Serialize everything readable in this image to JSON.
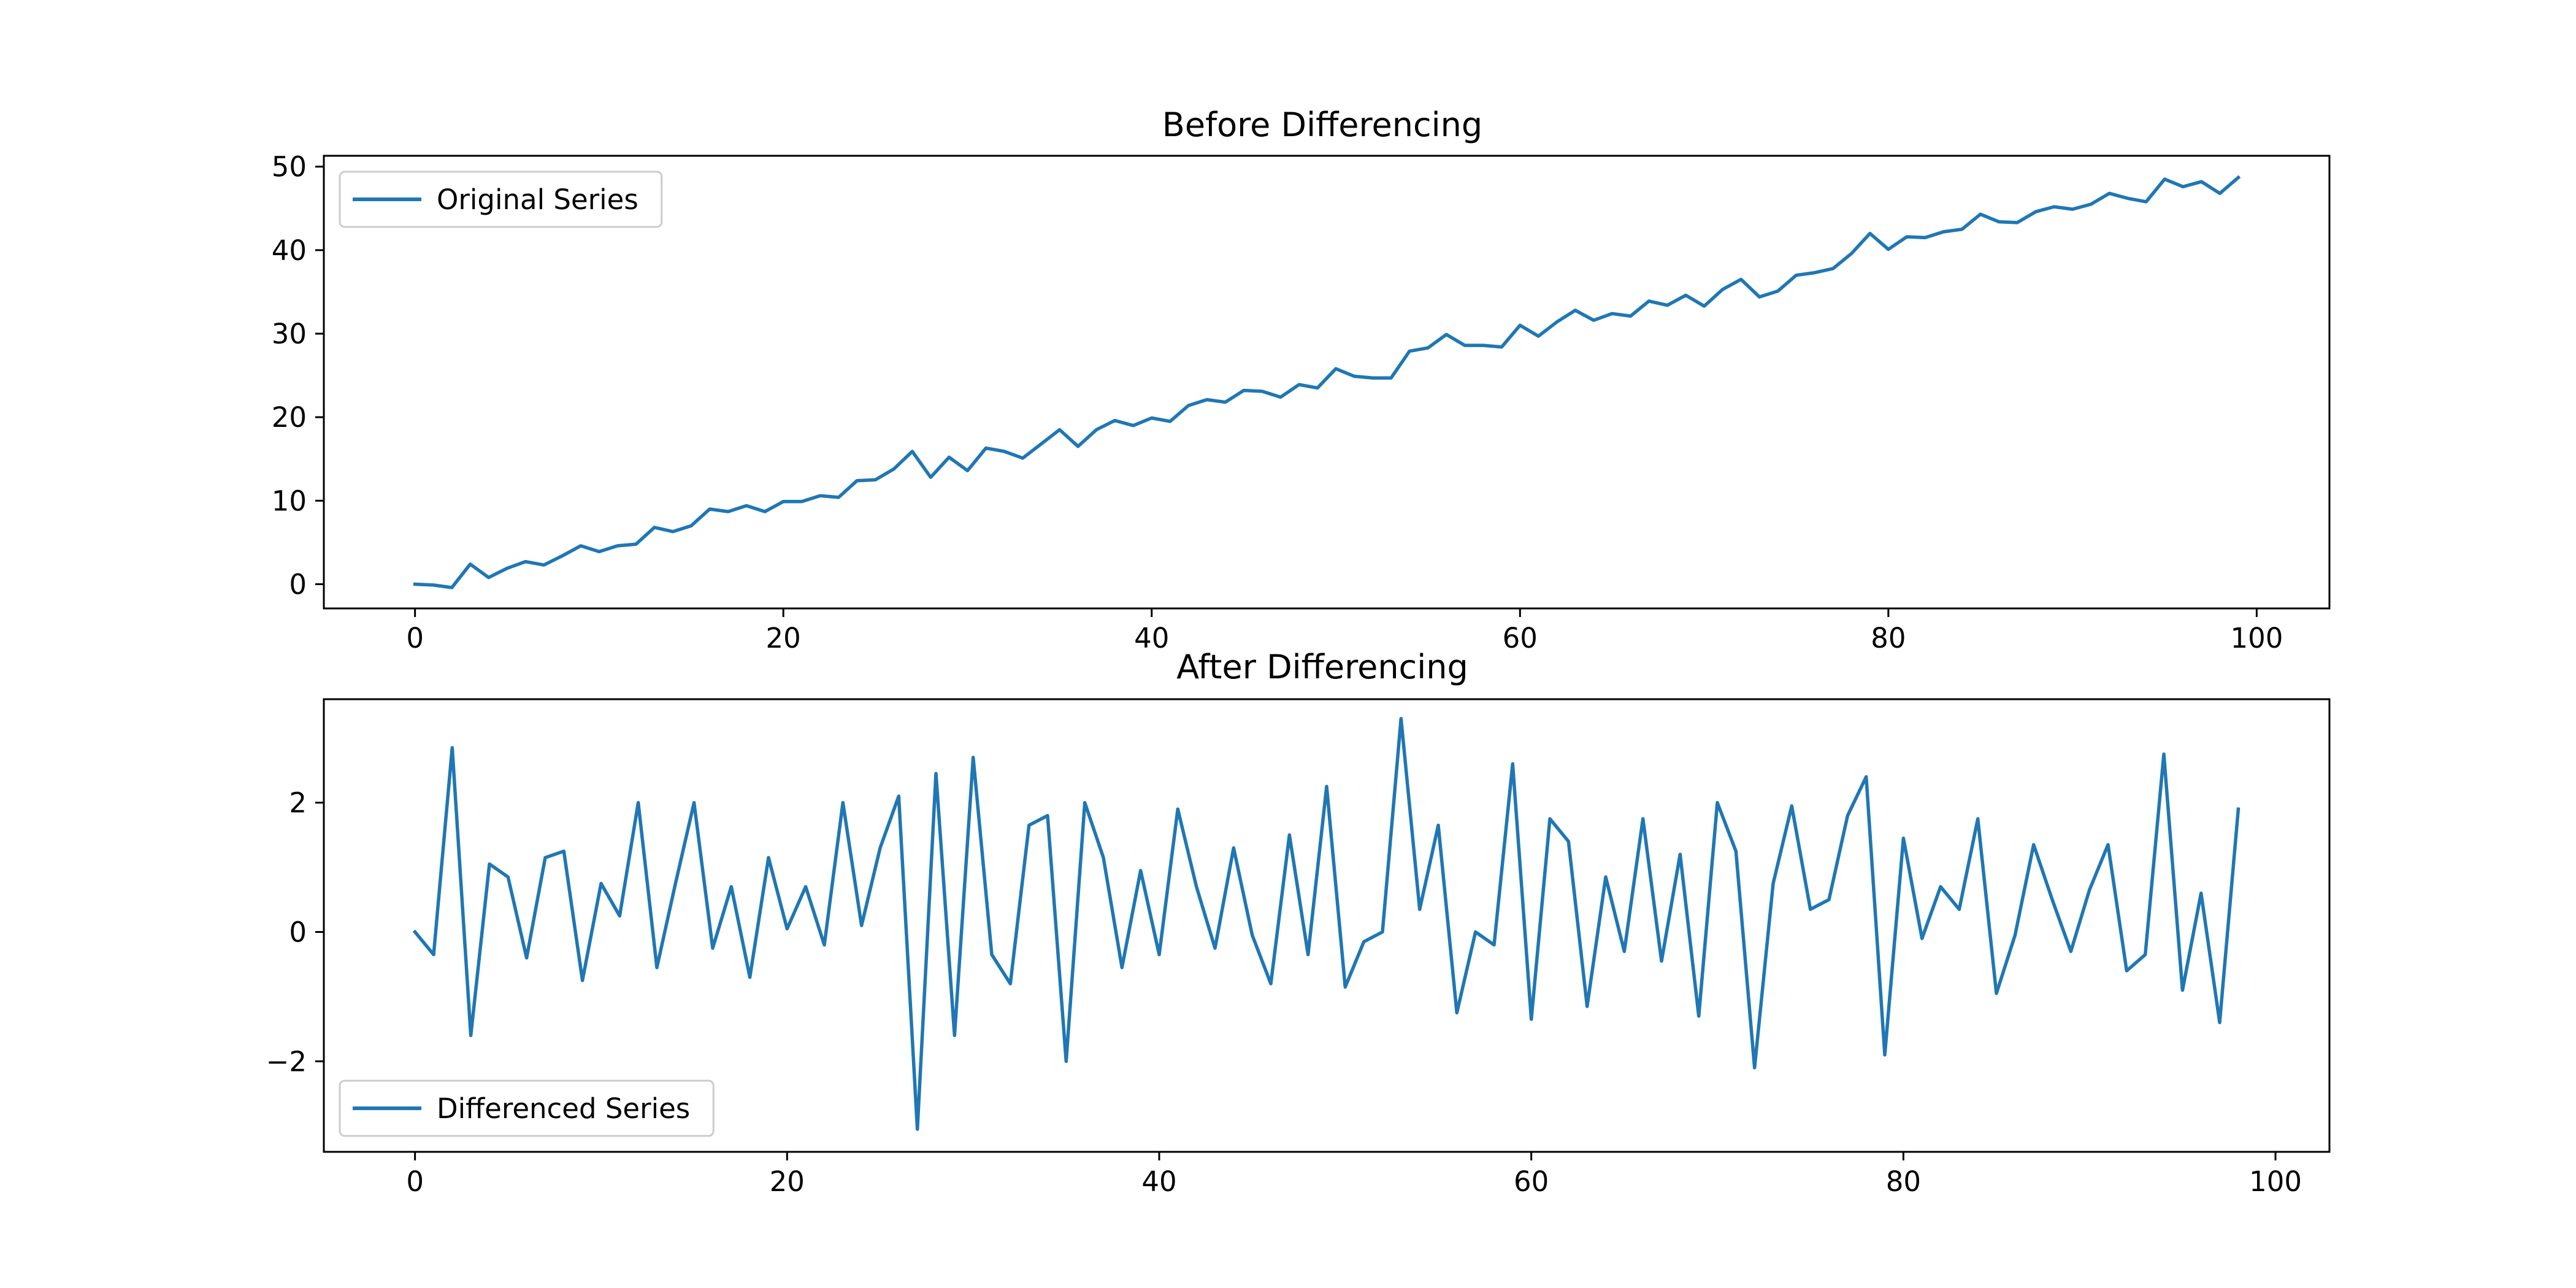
{
  "chart_data": [
    {
      "type": "line",
      "title": "Before Differencing",
      "xlabel": "",
      "ylabel": "",
      "xlim": [
        -4.95,
        103.95
      ],
      "ylim": [
        -2.9,
        51.3
      ],
      "xticks": [
        0,
        20,
        40,
        60,
        80,
        100
      ],
      "yticks": [
        0,
        10,
        20,
        30,
        40,
        50
      ],
      "grid": false,
      "legend_position": "upper left",
      "color": "#1f77b4",
      "series": [
        {
          "name": "Original Series",
          "x": [
            0,
            1,
            2,
            3,
            4,
            5,
            6,
            7,
            8,
            9,
            10,
            11,
            12,
            13,
            14,
            15,
            16,
            17,
            18,
            19,
            20,
            21,
            22,
            23,
            24,
            25,
            26,
            27,
            28,
            29,
            30,
            31,
            32,
            33,
            34,
            35,
            36,
            37,
            38,
            39,
            40,
            41,
            42,
            43,
            44,
            45,
            46,
            47,
            48,
            49,
            50,
            51,
            52,
            53,
            54,
            55,
            56,
            57,
            58,
            59,
            60,
            61,
            62,
            63,
            64,
            65,
            66,
            67,
            68,
            69,
            70,
            71,
            72,
            73,
            74,
            75,
            76,
            77,
            78,
            79,
            80,
            81,
            82,
            83,
            84,
            85,
            86,
            87,
            88,
            89,
            90,
            91,
            92,
            93,
            94,
            95,
            96,
            97,
            98,
            99
          ],
          "values": [
            0.0,
            -0.1,
            -0.4,
            2.4,
            0.8,
            1.9,
            2.7,
            2.3,
            3.4,
            4.6,
            3.9,
            4.6,
            4.8,
            6.8,
            6.3,
            7.0,
            9.0,
            8.7,
            9.4,
            8.7,
            9.9,
            9.9,
            10.6,
            10.4,
            12.4,
            12.5,
            13.8,
            15.9,
            12.8,
            15.2,
            13.6,
            16.3,
            15.9,
            15.1,
            16.8,
            18.5,
            16.5,
            18.5,
            19.6,
            19.0,
            19.9,
            19.5,
            21.4,
            22.1,
            21.8,
            23.2,
            23.1,
            22.4,
            23.9,
            23.5,
            25.8,
            24.9,
            24.7,
            24.7,
            27.9,
            28.3,
            29.9,
            28.6,
            28.6,
            28.4,
            31.0,
            29.7,
            31.4,
            32.8,
            31.6,
            32.4,
            32.1,
            33.9,
            33.4,
            34.6,
            33.3,
            35.3,
            36.5,
            34.4,
            35.1,
            37.0,
            37.3,
            37.8,
            39.6,
            42.0,
            40.1,
            41.6,
            41.5,
            42.2,
            42.5,
            44.3,
            43.4,
            43.3,
            44.6,
            45.2,
            44.9,
            45.5,
            46.8,
            46.2,
            45.8,
            48.5,
            47.6,
            48.2,
            46.8,
            48.7
          ]
        }
      ]
    },
    {
      "type": "line",
      "title": "After Differencing",
      "xlabel": "",
      "ylabel": "",
      "xlim": [
        -4.9,
        102.9
      ],
      "ylim": [
        -3.4,
        3.6
      ],
      "xticks": [
        0,
        20,
        40,
        60,
        80,
        100
      ],
      "yticks": [
        -2,
        0,
        2
      ],
      "ytick_labels": [
        "−2",
        "0",
        "2"
      ],
      "grid": false,
      "legend_position": "lower left",
      "color": "#1f77b4",
      "series": [
        {
          "name": "Differenced Series",
          "x": [
            0,
            1,
            2,
            3,
            4,
            5,
            6,
            7,
            8,
            9,
            10,
            11,
            12,
            13,
            14,
            15,
            16,
            17,
            18,
            19,
            20,
            21,
            22,
            23,
            24,
            25,
            26,
            27,
            28,
            29,
            30,
            31,
            32,
            33,
            34,
            35,
            36,
            37,
            38,
            39,
            40,
            41,
            42,
            43,
            44,
            45,
            46,
            47,
            48,
            49,
            50,
            51,
            52,
            53,
            54,
            55,
            56,
            57,
            58,
            59,
            60,
            61,
            62,
            63,
            64,
            65,
            66,
            67,
            68,
            69,
            70,
            71,
            72,
            73,
            74,
            75,
            76,
            77,
            78,
            79,
            80,
            81,
            82,
            83,
            84,
            85,
            86,
            87,
            88,
            89,
            90,
            91,
            92,
            93,
            94,
            95,
            96,
            97,
            98
          ],
          "values": [
            0.0,
            -0.35,
            2.85,
            -1.6,
            1.05,
            0.85,
            -0.4,
            1.15,
            1.25,
            -0.75,
            0.75,
            0.25,
            2.0,
            -0.55,
            0.75,
            2.0,
            -0.25,
            0.7,
            -0.7,
            1.15,
            0.05,
            0.7,
            -0.2,
            2.0,
            0.1,
            1.3,
            2.1,
            -3.05,
            2.45,
            -1.6,
            2.7,
            -0.35,
            -0.8,
            1.65,
            1.8,
            -2.0,
            2.0,
            1.15,
            -0.55,
            0.95,
            -0.35,
            1.9,
            0.7,
            -0.25,
            1.3,
            -0.05,
            -0.8,
            1.5,
            -0.35,
            2.25,
            -0.85,
            -0.15,
            0.0,
            3.3,
            0.35,
            1.65,
            -1.25,
            0.0,
            -0.2,
            2.6,
            -1.35,
            1.75,
            1.4,
            -1.15,
            0.85,
            -0.3,
            1.75,
            -0.45,
            1.2,
            -1.3,
            2.0,
            1.25,
            -2.1,
            0.75,
            1.95,
            0.35,
            0.5,
            1.8,
            2.4,
            -1.9,
            1.45,
            -0.1,
            0.7,
            0.35,
            1.75,
            -0.95,
            -0.05,
            1.35,
            0.5,
            -0.3,
            0.65,
            1.35,
            -0.6,
            -0.35,
            2.75,
            -0.9,
            0.6,
            -1.4,
            1.9
          ]
        }
      ]
    }
  ]
}
